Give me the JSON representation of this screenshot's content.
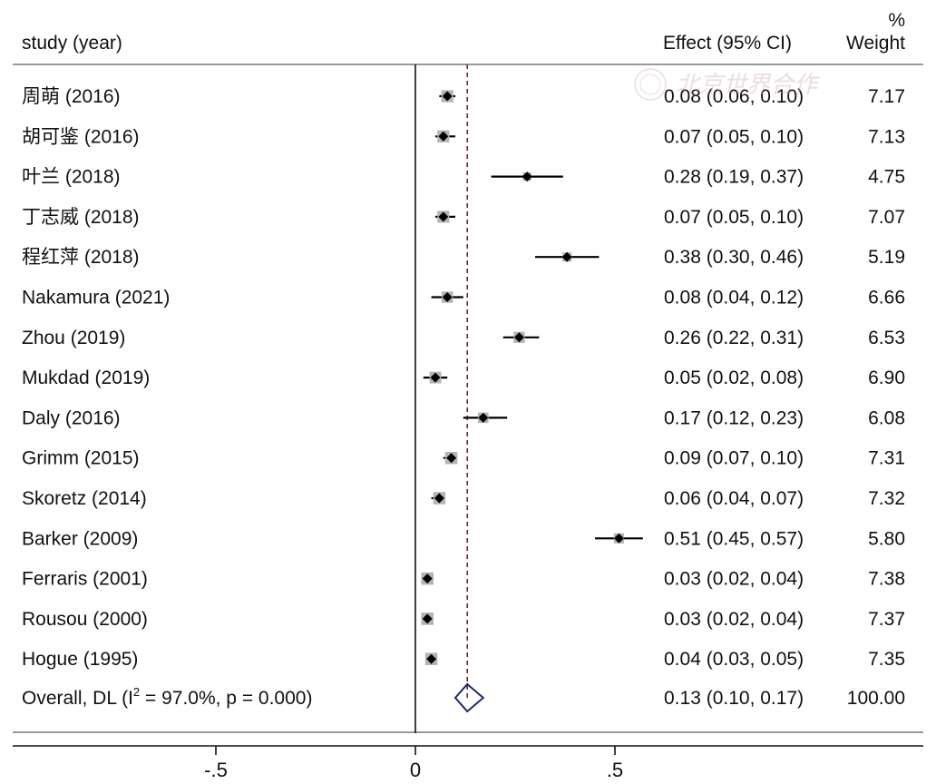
{
  "chart_data": {
    "type": "forest",
    "headers": {
      "study": "study (year)",
      "effect": "Effect (95% CI)",
      "weight_pct": "%",
      "weight": "Weight"
    },
    "studies": [
      {
        "label": "周萌 (2016)",
        "effect": 0.08,
        "lo": 0.06,
        "hi": 0.1,
        "ci_text": "0.08 (0.06, 0.10)",
        "weight": "7.17"
      },
      {
        "label": "胡可鉴 (2016)",
        "effect": 0.07,
        "lo": 0.05,
        "hi": 0.1,
        "ci_text": "0.07 (0.05, 0.10)",
        "weight": "7.13"
      },
      {
        "label": "叶兰 (2018)",
        "effect": 0.28,
        "lo": 0.19,
        "hi": 0.37,
        "ci_text": "0.28 (0.19, 0.37)",
        "weight": "4.75"
      },
      {
        "label": "丁志威 (2018)",
        "effect": 0.07,
        "lo": 0.05,
        "hi": 0.1,
        "ci_text": "0.07 (0.05, 0.10)",
        "weight": "7.07"
      },
      {
        "label": "程红萍 (2018)",
        "effect": 0.38,
        "lo": 0.3,
        "hi": 0.46,
        "ci_text": "0.38 (0.30, 0.46)",
        "weight": "5.19"
      },
      {
        "label": "Nakamura (2021)",
        "effect": 0.08,
        "lo": 0.04,
        "hi": 0.12,
        "ci_text": "0.08 (0.04, 0.12)",
        "weight": "6.66"
      },
      {
        "label": "Zhou (2019)",
        "effect": 0.26,
        "lo": 0.22,
        "hi": 0.31,
        "ci_text": "0.26 (0.22, 0.31)",
        "weight": "6.53"
      },
      {
        "label": "Mukdad (2019)",
        "effect": 0.05,
        "lo": 0.02,
        "hi": 0.08,
        "ci_text": "0.05 (0.02, 0.08)",
        "weight": "6.90"
      },
      {
        "label": "Daly (2016)",
        "effect": 0.17,
        "lo": 0.12,
        "hi": 0.23,
        "ci_text": "0.17 (0.12, 0.23)",
        "weight": "6.08"
      },
      {
        "label": "Grimm (2015)",
        "effect": 0.09,
        "lo": 0.07,
        "hi": 0.1,
        "ci_text": "0.09 (0.07, 0.10)",
        "weight": "7.31"
      },
      {
        "label": "Skoretz (2014)",
        "effect": 0.06,
        "lo": 0.04,
        "hi": 0.07,
        "ci_text": "0.06 (0.04, 0.07)",
        "weight": "7.32"
      },
      {
        "label": "Barker (2009)",
        "effect": 0.51,
        "lo": 0.45,
        "hi": 0.57,
        "ci_text": "0.51 (0.45, 0.57)",
        "weight": "5.80"
      },
      {
        "label": "Ferraris (2001)",
        "effect": 0.03,
        "lo": 0.02,
        "hi": 0.04,
        "ci_text": "0.03 (0.02, 0.04)",
        "weight": "7.38"
      },
      {
        "label": "Rousou (2000)",
        "effect": 0.03,
        "lo": 0.02,
        "hi": 0.04,
        "ci_text": "0.03 (0.02, 0.04)",
        "weight": "7.37"
      },
      {
        "label": "Hogue (1995)",
        "effect": 0.04,
        "lo": 0.03,
        "hi": 0.05,
        "ci_text": "0.04 (0.03, 0.05)",
        "weight": "7.35"
      }
    ],
    "overall": {
      "label_prefix": "Overall, DL (I",
      "label_sup": "2",
      "label_suffix": " = 97.0%, p = 0.000)",
      "effect": 0.13,
      "lo": 0.1,
      "hi": 0.17,
      "ci_text": "0.13 (0.10, 0.17)",
      "weight": "100.00"
    },
    "x_ticks": [
      {
        "value": -0.5,
        "label": "-.5"
      },
      {
        "value": 0,
        "label": "0"
      },
      {
        "value": 0.5,
        "label": ".5"
      }
    ],
    "null_line": 0,
    "overall_line": 0.13,
    "colors": {
      "text": "#111111",
      "axis": "#111111",
      "divider": "#9a9a9a",
      "overall_line": "#8b1a2b",
      "diamond": "#1f2a6b",
      "weight_box": "#b4b4b4",
      "marker": "#000000"
    }
  },
  "watermark": {
    "text": "北京世界合作"
  }
}
